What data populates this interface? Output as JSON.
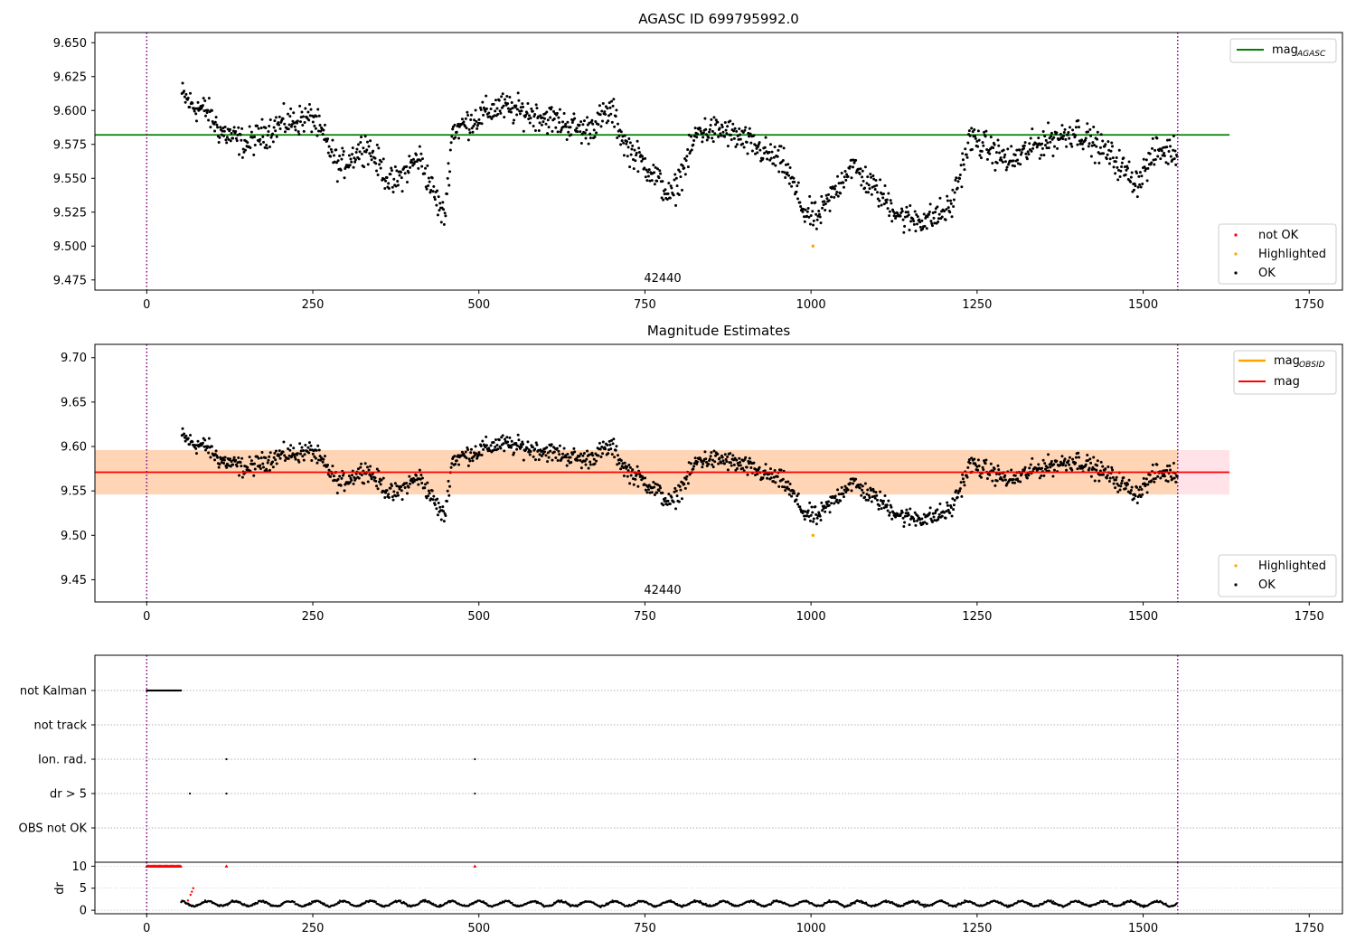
{
  "chart_data": [
    {
      "type": "scatter",
      "title": "AGASC ID 699795992.0",
      "xlim": [
        -78,
        1800
      ],
      "ylim": [
        9.4675,
        9.6575
      ],
      "xticks": [
        0,
        250,
        500,
        750,
        1000,
        1250,
        1500,
        1750
      ],
      "yticks": [
        9.475,
        9.5,
        9.525,
        9.55,
        9.575,
        9.6,
        9.625,
        9.65
      ],
      "ytick_labels": [
        "9.475",
        "9.500",
        "9.525",
        "9.550",
        "9.575",
        "9.600",
        "9.625",
        "9.650"
      ],
      "annotation": {
        "text": "42440",
        "x": 775
      },
      "vlines": [
        0,
        1552
      ],
      "hline": {
        "label": "mag",
        "sub": "AGASC",
        "y": 9.582,
        "x": [
          -78,
          1630
        ],
        "color": "#008000"
      },
      "series": [
        {
          "name": "not OK",
          "color": "#ff0000",
          "points": []
        },
        {
          "name": "Highlighted",
          "color": "#ffa500",
          "points": [
            [
              1003,
              9.5
            ]
          ]
        },
        {
          "name": "OK",
          "color": "#000000",
          "points": "generated"
        }
      ],
      "trend_knots": [
        [
          52,
          9.612
        ],
        [
          70,
          9.603
        ],
        [
          90,
          9.6
        ],
        [
          110,
          9.585
        ],
        [
          150,
          9.575
        ],
        [
          200,
          9.59
        ],
        [
          250,
          9.595
        ],
        [
          290,
          9.558
        ],
        [
          330,
          9.575
        ],
        [
          370,
          9.545
        ],
        [
          410,
          9.566
        ],
        [
          448,
          9.52
        ],
        [
          460,
          9.585
        ],
        [
          530,
          9.603
        ],
        [
          600,
          9.595
        ],
        [
          660,
          9.585
        ],
        [
          700,
          9.6
        ],
        [
          720,
          9.575
        ],
        [
          760,
          9.555
        ],
        [
          790,
          9.535
        ],
        [
          830,
          9.585
        ],
        [
          870,
          9.585
        ],
        [
          910,
          9.575
        ],
        [
          960,
          9.56
        ],
        [
          990,
          9.525
        ],
        [
          1010,
          9.52
        ],
        [
          1060,
          9.56
        ],
        [
          1100,
          9.54
        ],
        [
          1140,
          9.52
        ],
        [
          1180,
          9.52
        ],
        [
          1210,
          9.528
        ],
        [
          1240,
          9.58
        ],
        [
          1300,
          9.562
        ],
        [
          1340,
          9.575
        ],
        [
          1400,
          9.585
        ],
        [
          1450,
          9.567
        ],
        [
          1490,
          9.547
        ],
        [
          1520,
          9.57
        ],
        [
          1552,
          9.57
        ]
      ],
      "legend_top": {
        "position": "top-right",
        "entries": [
          {
            "label": "mag",
            "sub": "AGASC",
            "color": "#008000"
          }
        ]
      },
      "legend_bottom": {
        "position": "lower-right",
        "entries": [
          "not OK",
          "Highlighted",
          "OK"
        ]
      }
    },
    {
      "type": "scatter",
      "title": "Magnitude Estimates",
      "xlim": [
        -78,
        1800
      ],
      "ylim": [
        9.425,
        9.715
      ],
      "xticks": [
        0,
        250,
        500,
        750,
        1000,
        1250,
        1500,
        1750
      ],
      "yticks": [
        9.45,
        9.5,
        9.55,
        9.6,
        9.65,
        9.7
      ],
      "ytick_labels": [
        "9.45",
        "9.50",
        "9.55",
        "9.60",
        "9.65",
        "9.70"
      ],
      "annotation": {
        "text": "42440",
        "x": 775
      },
      "vlines": [
        0,
        1552
      ],
      "hline": {
        "label": "mag",
        "y": 9.571,
        "x": [
          -78,
          1630
        ],
        "color": "#ff0000"
      },
      "band_mag": {
        "y": [
          9.546,
          9.596
        ],
        "x": [
          -78,
          1630
        ],
        "color": "#ffc0cb"
      },
      "band_obsid": {
        "y": [
          9.546,
          9.596
        ],
        "x": [
          -78,
          1552
        ],
        "color": "#ffa500"
      },
      "series": [
        {
          "name": "Highlighted",
          "color": "#ffa500",
          "points": [
            [
              1003,
              9.5
            ]
          ]
        },
        {
          "name": "OK",
          "color": "#000000",
          "points": "same as panel 1"
        }
      ],
      "legend_top": {
        "position": "top-right",
        "entries": [
          {
            "label": "mag",
            "sub": "OBSID",
            "color": "#ffa500"
          },
          {
            "label": "mag",
            "color": "#ff0000"
          }
        ]
      },
      "legend_bottom": {
        "position": "lower-right",
        "entries": [
          "Highlighted",
          "OK"
        ]
      }
    },
    {
      "type": "scatter",
      "title": "",
      "xlim": [
        -78,
        1800
      ],
      "categories": [
        "not Kalman",
        "not track",
        "Ion. rad.",
        "dr > 5",
        "OBS not OK"
      ],
      "flag_points": {
        "not Kalman": {
          "x_range": [
            0,
            52
          ]
        },
        "Ion. rad.": {
          "x": [
            120,
            494
          ]
        },
        "dr > 5": {
          "x": [
            65,
            120,
            494
          ]
        },
        "not track": {
          "x": []
        },
        "OBS not OK": {
          "x": []
        }
      },
      "vlines": [
        0,
        1552
      ]
    },
    {
      "type": "line",
      "ylabel": "dr",
      "xlim": [
        -78,
        1800
      ],
      "ylim": [
        -0.8,
        10.9
      ],
      "yticks": [
        0,
        5,
        10
      ],
      "ytick_labels": [
        "0",
        "5",
        "10"
      ],
      "xticks": [
        0,
        250,
        500,
        750,
        1000,
        1250,
        1500,
        1750
      ],
      "capped_points": {
        "y": 10,
        "x_range": [
          0,
          52
        ],
        "extra_x": [
          120,
          494
        ],
        "color": "#ff0000"
      },
      "series": [
        {
          "color": "#000000",
          "x_range": [
            52,
            1552
          ],
          "mean": 1.5,
          "amplitude": 0.7
        }
      ],
      "spikes": [
        [
          62,
          2.2
        ],
        [
          66,
          3.5
        ],
        [
          68,
          4.2
        ],
        [
          70,
          5.0
        ]
      ],
      "vlines": [
        0,
        1552
      ]
    }
  ]
}
